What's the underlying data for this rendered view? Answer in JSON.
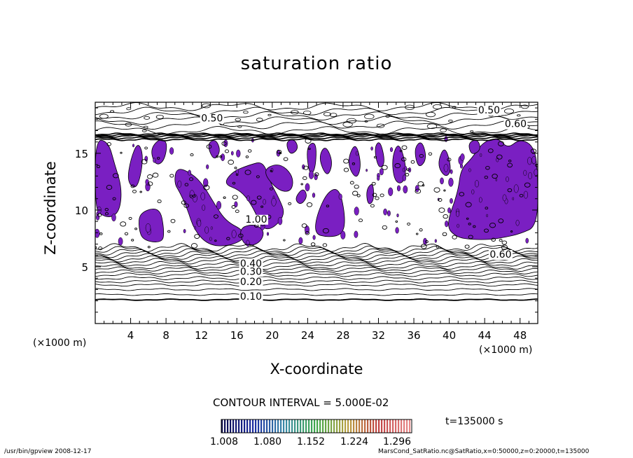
{
  "chart_data": {
    "type": "heatmap",
    "title": "saturation ratio",
    "xlabel": "X-coordinate",
    "ylabel": "Z-coordinate",
    "x_unit": "(×1000 m)",
    "xlim": [
      0,
      50
    ],
    "ylim": [
      0,
      19.5
    ],
    "x_ticks": [
      4,
      8,
      12,
      16,
      20,
      24,
      28,
      32,
      36,
      40,
      44,
      48
    ],
    "y_ticks": [
      5,
      10,
      15
    ],
    "contour_labels": [
      {
        "text": "0.50",
        "x": 44.5,
        "y": 18.5
      },
      {
        "text": "0.60",
        "x": 47.5,
        "y": 17.3
      },
      {
        "text": "0.50",
        "x": 13.2,
        "y": 17.8
      },
      {
        "text": "1.00",
        "x": 18.2,
        "y": 8.9
      },
      {
        "text": "0.60",
        "x": 45.8,
        "y": 5.8
      },
      {
        "text": "0.40",
        "x": 17.6,
        "y": 5.0
      },
      {
        "text": "0.30",
        "x": 17.6,
        "y": 4.3
      },
      {
        "text": "0.20",
        "x": 17.6,
        "y": 3.4
      },
      {
        "text": "0.10",
        "x": 17.6,
        "y": 2.1
      }
    ],
    "contour_interval": "CONTOUR INTERVAL = 5.000E-02",
    "colorbar": {
      "min": 1.0,
      "max": 1.34,
      "ticks": [
        "1.008",
        "1.080",
        "1.152",
        "1.224",
        "1.296"
      ],
      "colors": [
        "#0a0a4a",
        "#1a2aa0",
        "#3a8aa8",
        "#3fa84a",
        "#b8a040",
        "#c04040",
        "#e88a8a"
      ]
    },
    "fill_color": "#7a1fc2",
    "supersaturated_regions": "purple regions where saturation ratio exceeds 1.0"
  },
  "time_label": "t=135000 s",
  "footer": {
    "left": "/usr/bin/gpview   2008-12-17",
    "right": "MarsCond_SatRatio.nc@SatRatio,x=0:50000,z=0:20000,t=135000"
  }
}
